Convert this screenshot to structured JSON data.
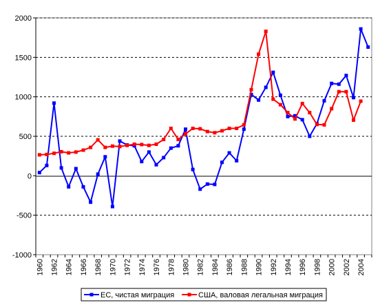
{
  "chart_data": {
    "type": "line",
    "title": "",
    "xlabel": "",
    "ylabel": "",
    "ylim": [
      -1000,
      2000
    ],
    "yticks": [
      2000,
      1500,
      1000,
      500,
      0,
      -500,
      -1000
    ],
    "xlim": [
      1960,
      2005
    ],
    "xticks": [
      1960,
      1962,
      1964,
      1966,
      1968,
      1970,
      1972,
      1974,
      1976,
      1978,
      1980,
      1982,
      1984,
      1986,
      1988,
      1990,
      1992,
      1994,
      1996,
      1998,
      2000,
      2002,
      2004
    ],
    "grid": "horizontal-dashed",
    "legend_position": "bottom",
    "series": [
      {
        "name": "ЕС, чистая миграция",
        "color": "#0000ff",
        "marker": "square",
        "x": [
          1960,
          1961,
          1962,
          1963,
          1964,
          1965,
          1966,
          1967,
          1968,
          1969,
          1970,
          1971,
          1972,
          1973,
          1974,
          1975,
          1976,
          1977,
          1978,
          1979,
          1980,
          1981,
          1982,
          1983,
          1984,
          1985,
          1986,
          1987,
          1988,
          1989,
          1990,
          1991,
          1992,
          1993,
          1994,
          1995,
          1996,
          1997,
          1998,
          1999,
          2000,
          2001,
          2002,
          2003,
          2004,
          2005
        ],
        "values": [
          40,
          130,
          920,
          100,
          -140,
          90,
          -140,
          -335,
          20,
          240,
          -390,
          440,
          390,
          380,
          180,
          300,
          140,
          230,
          350,
          380,
          590,
          80,
          -170,
          -105,
          -110,
          170,
          290,
          190,
          590,
          1030,
          960,
          1120,
          1310,
          1020,
          750,
          760,
          710,
          500,
          660,
          950,
          1170,
          1160,
          1270,
          990,
          1860,
          1630
        ]
      },
      {
        "name": "США, валовая легальная миграция",
        "color": "#ff0000",
        "marker": "square",
        "x": [
          1960,
          1961,
          1962,
          1963,
          1964,
          1965,
          1966,
          1967,
          1968,
          1969,
          1970,
          1971,
          1972,
          1973,
          1974,
          1975,
          1976,
          1977,
          1978,
          1979,
          1980,
          1981,
          1982,
          1983,
          1984,
          1985,
          1986,
          1987,
          1988,
          1989,
          1990,
          1991,
          1992,
          1993,
          1994,
          1995,
          1996,
          1997,
          1998,
          1999,
          2000,
          2001,
          2002,
          2003,
          2004
        ],
        "values": [
          265,
          270,
          285,
          305,
          290,
          300,
          325,
          360,
          455,
          360,
          375,
          370,
          385,
          400,
          395,
          385,
          400,
          460,
          600,
          460,
          530,
          600,
          595,
          560,
          545,
          570,
          600,
          600,
          645,
          1090,
          1540,
          1830,
          970,
          900,
          800,
          720,
          915,
          800,
          650,
          645,
          850,
          1065,
          1065,
          705,
          945
        ]
      }
    ]
  }
}
